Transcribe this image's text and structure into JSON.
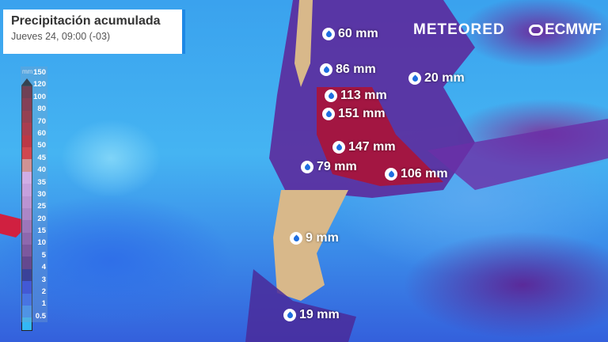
{
  "header": {
    "title": "Precipitación acumulada",
    "subtitle": "Jueves 24, 09:00 (-03)"
  },
  "brands": {
    "meteored": "METEORED",
    "ecmwf": "ECMWF"
  },
  "legend": {
    "unit": "mm",
    "labels": [
      "150",
      "120",
      "100",
      "80",
      "70",
      "60",
      "50",
      "45",
      "40",
      "35",
      "30",
      "25",
      "20",
      "15",
      "10",
      "5",
      "4",
      "3",
      "2",
      "1",
      "0.5"
    ],
    "colors": [
      "#6b0f1a",
      "#8b0d1b",
      "#a50f15",
      "#c40a10",
      "#e00000",
      "#ff1a10",
      "#ff8a78",
      "#ffb4f4",
      "#eea0e8",
      "#dd8cd8",
      "#c878c6",
      "#b060b2",
      "#9a4aa0",
      "#7e3288",
      "#5a1a70",
      "#1a1080",
      "#2634dc",
      "#2e5cf0",
      "#3a8cf5",
      "#34b8f5",
      "#a0e0fa"
    ]
  },
  "markers": [
    {
      "label": "60 mm",
      "icon": "raindrop-icon"
    },
    {
      "label": "86 mm",
      "icon": "raindrop-icon"
    },
    {
      "label": "20 mm",
      "icon": "raindrop-icon"
    },
    {
      "label": "113 mm",
      "icon": "raindrop-icon"
    },
    {
      "label": "151 mm",
      "icon": "raindrop-icon"
    },
    {
      "label": "147 mm",
      "icon": "raindrop-icon"
    },
    {
      "label": "79 mm",
      "icon": "raindrop-icon"
    },
    {
      "label": "106 mm",
      "icon": "raindrop-icon"
    },
    {
      "label": "9 mm",
      "icon": "raindrop-icon"
    },
    {
      "label": "19 mm",
      "icon": "raindrop-icon"
    }
  ]
}
